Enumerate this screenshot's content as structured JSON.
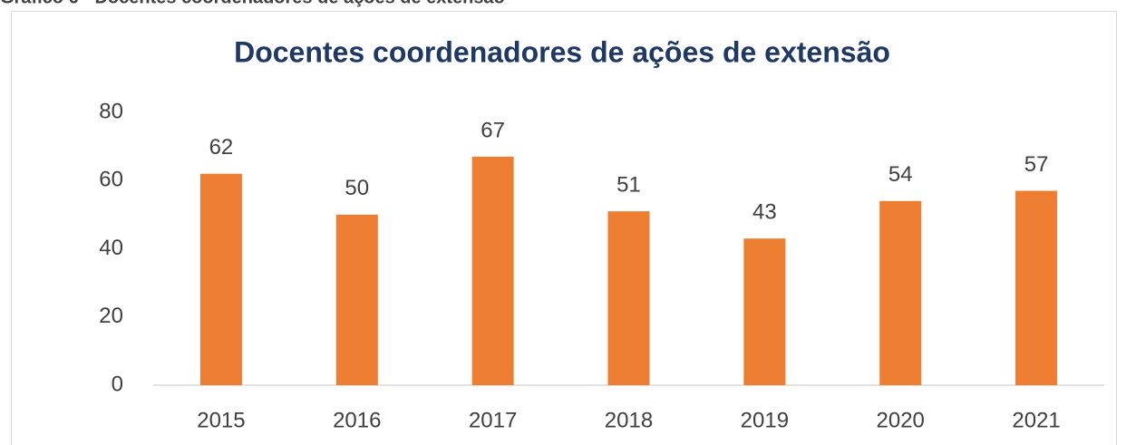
{
  "caption": "Gráfico 6 - Docentes coordenadores de ações de extensão",
  "chart_data": {
    "type": "bar",
    "title": "Docentes coordenadores de ações de extensão",
    "categories": [
      "2015",
      "2016",
      "2017",
      "2018",
      "2019",
      "2020",
      "2021"
    ],
    "values": [
      62,
      50,
      67,
      51,
      43,
      54,
      57
    ],
    "color": "#ed7d31",
    "ylim": [
      0,
      80
    ],
    "yticks": [
      0,
      20,
      40,
      60,
      80
    ],
    "grid": false
  }
}
